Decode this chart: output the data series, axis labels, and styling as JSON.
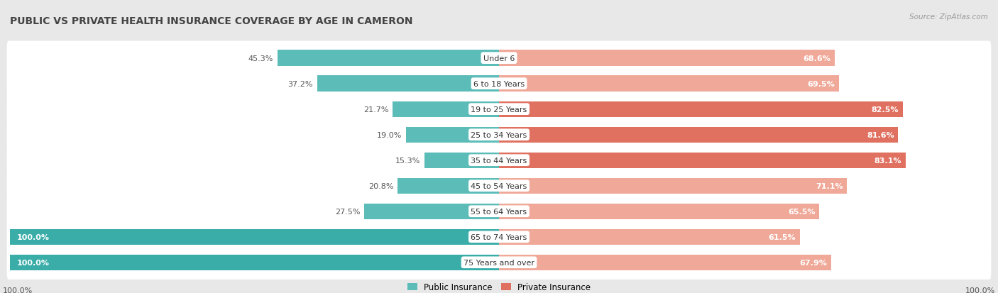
{
  "title": "PUBLIC VS PRIVATE HEALTH INSURANCE COVERAGE BY AGE IN CAMERON",
  "source": "Source: ZipAtlas.com",
  "categories": [
    "Under 6",
    "6 to 18 Years",
    "19 to 25 Years",
    "25 to 34 Years",
    "35 to 44 Years",
    "45 to 54 Years",
    "55 to 64 Years",
    "65 to 74 Years",
    "75 Years and over"
  ],
  "public_values": [
    45.3,
    37.2,
    21.7,
    19.0,
    15.3,
    20.8,
    27.5,
    100.0,
    100.0
  ],
  "private_values": [
    68.6,
    69.5,
    82.5,
    81.6,
    83.1,
    71.1,
    65.5,
    61.5,
    67.9
  ],
  "public_color": "#5bbcb8",
  "private_color_dark": "#e07060",
  "private_color_light": "#f0a898",
  "public_color_full": "#3aada8",
  "bg_color": "#e8e8e8",
  "title_bg_color": "#ffffff",
  "bar_bg_color": "#ffffff",
  "legend_public": "Public Insurance",
  "legend_private": "Private Insurance",
  "bar_height": 0.62,
  "max_value": 100.0,
  "private_dark_threshold": 75.0
}
